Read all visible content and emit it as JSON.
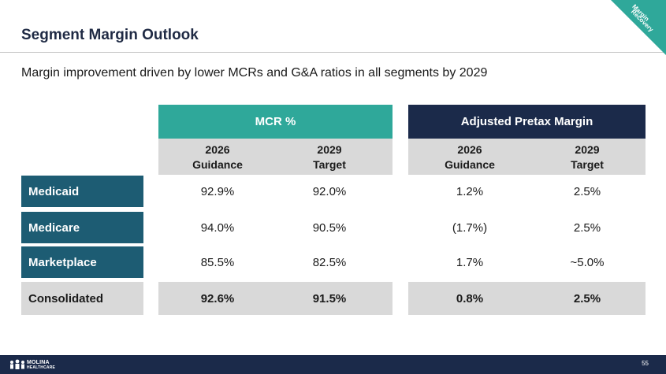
{
  "slide": {
    "title": "Segment Margin Outlook",
    "subtitle": "Margin improvement driven by lower MCRs and G&A ratios in all segments by 2029",
    "corner_tag": [
      "Margin",
      "Recovery"
    ],
    "page_number": "55"
  },
  "table": {
    "groups": [
      {
        "label": "MCR %",
        "color": "#2fa89a"
      },
      {
        "label": "Adjusted Pretax Margin",
        "color": "#1b2a4a"
      }
    ],
    "columns": [
      {
        "line1": "2026",
        "line2": "Guidance"
      },
      {
        "line1": "2029",
        "line2": "Target"
      },
      {
        "line1": "2026",
        "line2": "Guidance"
      },
      {
        "line1": "2029",
        "line2": "Target"
      }
    ],
    "rows": [
      {
        "label": "Medicaid",
        "values": [
          "92.9%",
          "92.0%",
          "1.2%",
          "2.5%"
        ]
      },
      {
        "label": "Medicare",
        "values": [
          "94.0%",
          "90.5%",
          "(1.7%)",
          "2.5%"
        ]
      },
      {
        "label": "Marketplace",
        "values": [
          "85.5%",
          "82.5%",
          "1.7%",
          "~5.0%"
        ]
      },
      {
        "label": "Consolidated",
        "values": [
          "92.6%",
          "91.5%",
          "0.8%",
          "2.5%"
        ]
      }
    ]
  },
  "brand": {
    "logo_line1": "MOLINA",
    "logo_line2": "HEALTHCARE",
    "logo_icon": "people-icon",
    "accent": "#2fa89a",
    "navy": "#1b2a4a",
    "row_label_color": "#1d5c73"
  }
}
